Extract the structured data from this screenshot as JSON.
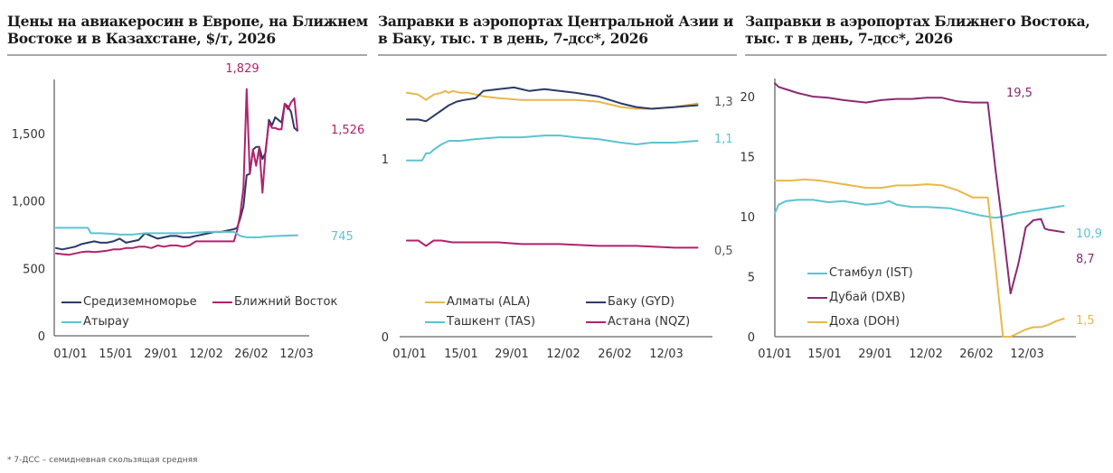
{
  "footnote": "* 7-ДСС – семидневная скользящая средняя",
  "chart_data": [
    {
      "type": "line",
      "title": "Цены на авиакеросин в Европе, на Ближнем Востоке и в Казахстане, $/т, 2026",
      "title_lines": [
        "Цены на авиакеросин в Европе, на Ближнем",
        "Востоке и в Казахстане, $/т, 2026"
      ],
      "xlabel": "",
      "ylabel": "",
      "x_ticks": [
        "01/01",
        "15/01",
        "29/01",
        "12/02",
        "26/02",
        "12/03"
      ],
      "y_ticks": [
        "0",
        "500",
        "1,000",
        "1,500"
      ],
      "y_tick_values": [
        0,
        500,
        1000,
        1500
      ],
      "ylim": [
        0,
        1900
      ],
      "x_range_days": [
        0,
        78
      ],
      "grid": false,
      "legend_position": "bottom-left",
      "series": [
        {
          "name": "Средиземноморье",
          "color": "#2b3a67",
          "x": [
            0,
            2,
            4,
            6,
            8,
            10,
            12,
            14,
            16,
            18,
            20,
            22,
            24,
            26,
            28,
            30,
            32,
            34,
            36,
            38,
            40,
            42,
            44,
            46,
            48,
            50,
            52,
            54,
            56,
            57,
            58,
            59,
            60,
            61,
            62,
            63,
            64,
            65,
            66,
            67,
            68,
            69,
            70,
            71,
            72,
            73,
            74,
            75,
            76
          ],
          "y": [
            650,
            640,
            650,
            660,
            680,
            690,
            700,
            690,
            690,
            700,
            720,
            690,
            700,
            710,
            760,
            740,
            720,
            730,
            740,
            740,
            730,
            730,
            740,
            750,
            760,
            770,
            770,
            780,
            790,
            800,
            870,
            960,
            1190,
            1200,
            1380,
            1400,
            1400,
            1310,
            1360,
            1600,
            1560,
            1620,
            1600,
            1580,
            1720,
            1700,
            1660,
            1540,
            1520
          ]
        },
        {
          "name": "Ближний Восток",
          "color": "#b2226b",
          "x": [
            0,
            2,
            4,
            6,
            8,
            10,
            12,
            14,
            16,
            18,
            20,
            22,
            24,
            26,
            28,
            30,
            32,
            34,
            36,
            38,
            40,
            42,
            44,
            46,
            48,
            50,
            52,
            54,
            56,
            57,
            58,
            59,
            60,
            61,
            62,
            63,
            64,
            65,
            66,
            67,
            68,
            69,
            70,
            71,
            72,
            73,
            74,
            75,
            76
          ],
          "y": [
            610,
            605,
            600,
            610,
            620,
            625,
            620,
            625,
            630,
            640,
            640,
            650,
            650,
            660,
            660,
            650,
            670,
            660,
            670,
            670,
            660,
            670,
            700,
            700,
            700,
            700,
            700,
            700,
            700,
            780,
            900,
            1100,
            1829,
            1200,
            1380,
            1260,
            1400,
            1060,
            1380,
            1580,
            1540,
            1540,
            1530,
            1530,
            1720,
            1680,
            1730,
            1760,
            1526
          ]
        },
        {
          "name": "Атырау",
          "color": "#5bc4d1",
          "x": [
            0,
            6,
            10,
            11,
            14,
            18,
            20,
            24,
            28,
            32,
            40,
            44,
            48,
            52,
            56,
            58,
            60,
            62,
            64,
            66,
            70,
            76
          ],
          "y": [
            800,
            800,
            800,
            760,
            760,
            755,
            750,
            750,
            760,
            760,
            760,
            765,
            770,
            770,
            770,
            740,
            730,
            730,
            730,
            735,
            740,
            745
          ]
        }
      ],
      "annotations": [
        {
          "text": "1,829",
          "series": "Ближний Восток",
          "color": "#b2226b"
        },
        {
          "text": "1,526",
          "series": "Ближний Восток",
          "color": "#b2226b"
        },
        {
          "text": "745",
          "series": "Атырау",
          "color": "#5bc4d1"
        }
      ]
    },
    {
      "type": "line",
      "title": "Заправки в аэропортах Центральной Азии и в Баку, тыс. т в день, 7-дсс*, 2026",
      "title_lines": [
        "Заправки в аэропортах Центральной Азии и",
        "в Баку, тыс. т в день, 7-дсс*, 2026"
      ],
      "xlabel": "",
      "ylabel": "",
      "x_ticks": [
        "01/01",
        "15/01",
        "29/01",
        "12/02",
        "26/02",
        "12/03"
      ],
      "y_ticks": [
        "0",
        "1"
      ],
      "y_tick_values": [
        0,
        1
      ],
      "ylim": [
        0,
        1.45
      ],
      "x_range_days": [
        0,
        78
      ],
      "grid": false,
      "legend_position": "bottom",
      "series": [
        {
          "name": "Алматы (ALA)",
          "color": "#e8b84a",
          "x": [
            0,
            3,
            5,
            7,
            9,
            10,
            11,
            12,
            14,
            16,
            20,
            24,
            30,
            36,
            44,
            50,
            56,
            60,
            64,
            70,
            76
          ],
          "y": [
            1.37,
            1.36,
            1.33,
            1.36,
            1.37,
            1.38,
            1.37,
            1.38,
            1.37,
            1.37,
            1.35,
            1.34,
            1.33,
            1.33,
            1.33,
            1.32,
            1.29,
            1.28,
            1.28,
            1.29,
            1.31
          ]
        },
        {
          "name": "Баку (GYD)",
          "color": "#2b3a67",
          "x": [
            0,
            3,
            5,
            7,
            9,
            11,
            13,
            15,
            18,
            20,
            24,
            28,
            32,
            36,
            44,
            50,
            56,
            60,
            64,
            70,
            76
          ],
          "y": [
            1.22,
            1.22,
            1.21,
            1.24,
            1.27,
            1.3,
            1.32,
            1.33,
            1.34,
            1.38,
            1.39,
            1.4,
            1.38,
            1.39,
            1.37,
            1.35,
            1.31,
            1.29,
            1.28,
            1.29,
            1.3
          ]
        },
        {
          "name": "Ташкент (TAS)",
          "color": "#5bc4d1",
          "x": [
            0,
            4,
            5,
            6,
            7,
            9,
            11,
            14,
            18,
            24,
            30,
            36,
            40,
            44,
            50,
            56,
            60,
            64,
            70,
            76
          ],
          "y": [
            0.99,
            0.99,
            1.03,
            1.03,
            1.05,
            1.08,
            1.1,
            1.1,
            1.11,
            1.12,
            1.12,
            1.13,
            1.13,
            1.12,
            1.11,
            1.09,
            1.08,
            1.09,
            1.09,
            1.1
          ]
        },
        {
          "name": "Астана (NQZ)",
          "color": "#b2226b",
          "x": [
            0,
            3,
            5,
            7,
            9,
            12,
            16,
            24,
            30,
            40,
            50,
            60,
            70,
            76
          ],
          "y": [
            0.54,
            0.54,
            0.51,
            0.54,
            0.54,
            0.53,
            0.53,
            0.53,
            0.52,
            0.52,
            0.51,
            0.51,
            0.5,
            0.5
          ]
        }
      ],
      "annotations": [
        {
          "text": "1,3",
          "series": "Баку (GYD)",
          "color": "#555555"
        },
        {
          "text": "1,1",
          "series": "Ташкент (TAS)",
          "color": "#5bc4d1"
        },
        {
          "text": "0,5",
          "series": "Астана (NQZ)",
          "color": "#555555"
        }
      ]
    },
    {
      "type": "line",
      "title": "Заправки в аэропортах Ближнего Востока, тыс. т в день, 7-дсс*, 2026",
      "title_lines": [
        "Заправки в аэропортах Ближнего Востока,",
        "тыс. т в день, 7-дсс*, 2026"
      ],
      "xlabel": "",
      "ylabel": "",
      "x_ticks": [
        "01/01",
        "15/01",
        "29/01",
        "12/02",
        "26/02",
        "12/03"
      ],
      "y_ticks": [
        "0",
        "5",
        "10",
        "15",
        "20"
      ],
      "y_tick_values": [
        0,
        5,
        10,
        15,
        20
      ],
      "ylim": [
        0,
        21.5
      ],
      "x_range_days": [
        0,
        78
      ],
      "grid": false,
      "legend_position": "bottom-left",
      "series": [
        {
          "name": "Стамбул (IST)",
          "color": "#5bc4d1",
          "x": [
            0,
            1,
            3,
            6,
            10,
            14,
            18,
            24,
            28,
            30,
            32,
            36,
            40,
            46,
            50,
            54,
            58,
            60,
            64,
            70,
            76
          ],
          "y": [
            10.3,
            11.0,
            11.3,
            11.4,
            11.4,
            11.2,
            11.3,
            11.0,
            11.1,
            11.3,
            11.0,
            10.8,
            10.8,
            10.7,
            10.4,
            10.1,
            9.9,
            10.0,
            10.3,
            10.6,
            10.9
          ]
        },
        {
          "name": "Дубай (DXB)",
          "color": "#8b2a74",
          "x": [
            0,
            1,
            3,
            6,
            10,
            14,
            18,
            24,
            28,
            32,
            36,
            40,
            44,
            48,
            52,
            56,
            58,
            60,
            62,
            64,
            65,
            66,
            68,
            70,
            71,
            72,
            74,
            76
          ],
          "y": [
            21.1,
            20.8,
            20.6,
            20.3,
            20.0,
            19.9,
            19.7,
            19.5,
            19.7,
            19.8,
            19.8,
            19.9,
            19.9,
            19.6,
            19.5,
            19.5,
            14.0,
            9.0,
            3.6,
            6.0,
            7.5,
            9.1,
            9.7,
            9.8,
            9.0,
            8.9,
            8.8,
            8.7
          ]
        },
        {
          "name": "Доха (DOH)",
          "color": "#e8b84a",
          "x": [
            0,
            4,
            8,
            12,
            16,
            20,
            24,
            28,
            32,
            36,
            40,
            44,
            48,
            52,
            54,
            56,
            58,
            60,
            62,
            64,
            66,
            68,
            70,
            72,
            74,
            76
          ],
          "y": [
            13.0,
            13.0,
            13.1,
            13.0,
            12.8,
            12.6,
            12.4,
            12.4,
            12.6,
            12.6,
            12.7,
            12.6,
            12.2,
            11.6,
            11.6,
            11.6,
            6.0,
            0.0,
            0.0,
            0.3,
            0.6,
            0.8,
            0.8,
            1.0,
            1.3,
            1.5
          ]
        }
      ],
      "annotations": [
        {
          "text": "19,5",
          "series": "Дубай (DXB)",
          "color": "#8b2a74"
        },
        {
          "text": "10,9",
          "series": "Стамбул (IST)",
          "color": "#5bc4d1"
        },
        {
          "text": "8,7",
          "series": "Дубай (DXB)",
          "color": "#8b2a74"
        },
        {
          "text": "1,5",
          "series": "Доха (DOH)",
          "color": "#e8b84a"
        }
      ]
    }
  ]
}
